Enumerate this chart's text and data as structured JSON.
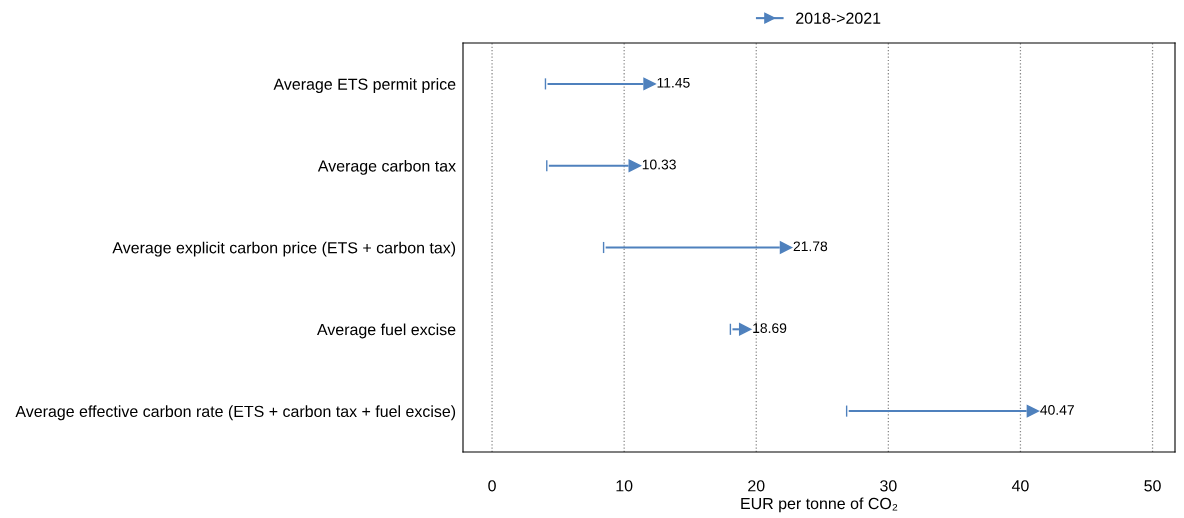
{
  "chart_data": {
    "type": "bar",
    "orientation": "horizontal",
    "categories": [
      "Average ETS permit price",
      "Average carbon tax",
      "Average explicit carbon price (ETS + carbon tax)",
      "Average fuel excise",
      "Average effective carbon rate (ETS + carbon tax + fuel excise)"
    ],
    "series": [
      {
        "name": "2018->2021",
        "color": "#4f81bd",
        "base": [
          4.2,
          4.3,
          8.6,
          18.2,
          27.0
        ],
        "values": [
          7.25,
          6.03,
          13.18,
          0.49,
          13.47
        ],
        "value_labels": [
          "11.45",
          "10.33",
          "21.78",
          "18.69",
          "40.47"
        ]
      }
    ],
    "xlabel": "EUR per tonne of CO₂",
    "xlim": [
      -2.2,
      51.7
    ],
    "xticks": [
      0,
      10,
      20,
      30,
      40,
      50
    ],
    "grid": "x",
    "legend": "top"
  }
}
